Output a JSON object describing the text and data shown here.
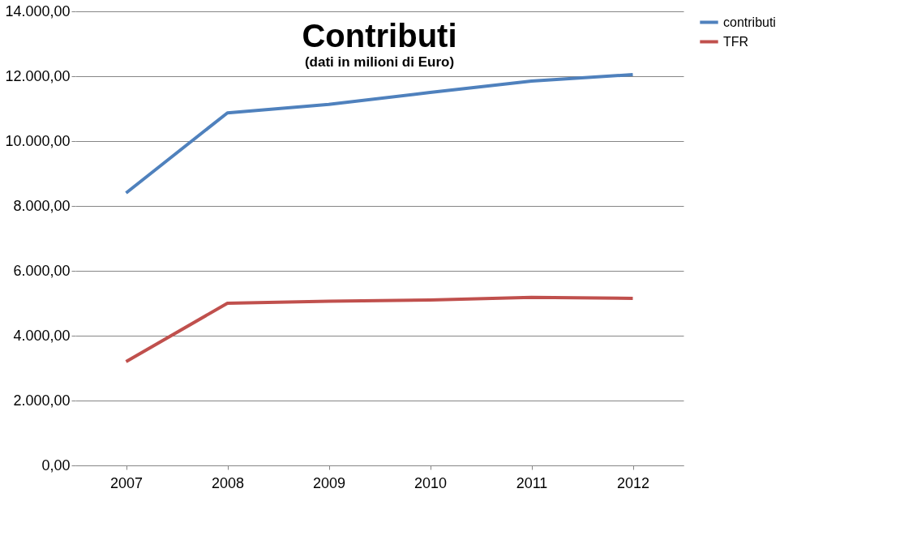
{
  "chart_data": {
    "type": "line",
    "title": "Contributi",
    "subtitle": "(dati in milioni di Euro)",
    "categories": [
      "2007",
      "2008",
      "2009",
      "2010",
      "2011",
      "2012"
    ],
    "series": [
      {
        "name": "contributi",
        "color": "#4f81bd",
        "values": [
          8400,
          10870,
          11130,
          11500,
          11850,
          12050
        ]
      },
      {
        "name": "TFR",
        "color": "#c0504d",
        "values": [
          3200,
          5000,
          5060,
          5100,
          5180,
          5150
        ]
      }
    ],
    "ylim": [
      0,
      14000
    ],
    "yticks": [
      {
        "value": 0,
        "label": "0,00"
      },
      {
        "value": 2000,
        "label": "2.000,00"
      },
      {
        "value": 4000,
        "label": "4.000,00"
      },
      {
        "value": 6000,
        "label": "6.000,00"
      },
      {
        "value": 8000,
        "label": "8.000,00"
      },
      {
        "value": 10000,
        "label": "10.000,00"
      },
      {
        "value": 12000,
        "label": "12.000,00"
      },
      {
        "value": 14000,
        "label": "14.000,00"
      }
    ],
    "grid": "y",
    "legend": "right",
    "marker": "none",
    "line_style": "solid"
  }
}
